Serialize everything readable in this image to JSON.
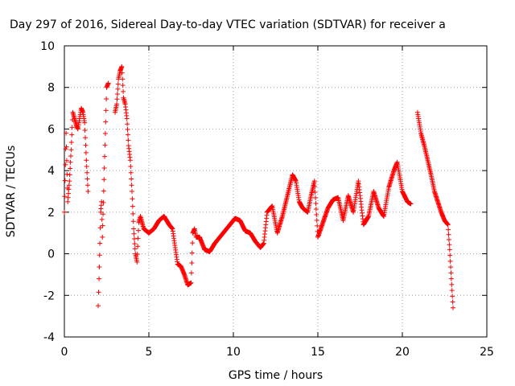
{
  "chart_data": {
    "type": "scatter",
    "title": "Day 297 of 2016, Sidereal Day-to-day VTEC variation (SDTVAR) for receiver a",
    "xlabel": "GPS time / hours",
    "ylabel": "SDTVAR / TECUs",
    "xlim": [
      0,
      25
    ],
    "ylim": [
      -4,
      10
    ],
    "xticks": [
      0,
      5,
      10,
      15,
      20,
      25
    ],
    "xtick_labels": [
      "0",
      "5",
      "10",
      "15",
      "20",
      "25"
    ],
    "yticks": [
      -4,
      -2,
      0,
      2,
      4,
      6,
      8,
      10
    ],
    "ytick_labels": [
      "-4",
      "-2",
      "0",
      "2",
      "4",
      "6",
      "8",
      "10"
    ],
    "grid": true,
    "marker": "+",
    "color": "#ff0000",
    "series": [
      {
        "name": "SDTVAR",
        "x": [
          0.0,
          0.1,
          0.2,
          0.3,
          0.4,
          0.5,
          0.6,
          0.7,
          0.8,
          0.9,
          1.0,
          1.1,
          1.2,
          1.3,
          1.4,
          2.0,
          2.05,
          2.1,
          2.15,
          2.2,
          2.25,
          2.5,
          2.6,
          3.0,
          3.1,
          3.2,
          3.3,
          3.4,
          3.5,
          3.6,
          3.7,
          3.8,
          3.9,
          4.0,
          4.1,
          4.2,
          4.3,
          4.4,
          4.5,
          4.7,
          5.0,
          5.3,
          5.6,
          5.9,
          6.2,
          6.4,
          6.7,
          6.9,
          7.1,
          7.3,
          7.5,
          7.6,
          7.7,
          7.8,
          8.0,
          8.3,
          8.6,
          8.9,
          9.2,
          9.5,
          9.8,
          10.1,
          10.4,
          10.7,
          11.0,
          11.3,
          11.6,
          11.8,
          12.0,
          12.3,
          12.6,
          12.9,
          13.2,
          13.5,
          13.7,
          13.9,
          14.1,
          14.4,
          14.6,
          14.8,
          15.0,
          15.3,
          15.6,
          15.9,
          16.2,
          16.5,
          16.8,
          17.1,
          17.4,
          17.7,
          18.0,
          18.3,
          18.6,
          18.9,
          19.2,
          19.5,
          19.7,
          20.0,
          20.3,
          20.5,
          20.9,
          21.1,
          21.3,
          21.5,
          21.7,
          21.9,
          22.1,
          22.3,
          22.5,
          22.7,
          22.8,
          22.9,
          23.0
        ],
        "y": [
          2.0,
          5.8,
          2.5,
          3.5,
          5.0,
          6.8,
          6.5,
          6.2,
          6.0,
          6.5,
          7.0,
          6.8,
          6.3,
          4.5,
          3.0,
          -2.5,
          -1.2,
          0.5,
          2.0,
          2.5,
          0.8,
          8.0,
          8.2,
          6.8,
          7.2,
          8.4,
          8.8,
          9.0,
          7.5,
          7.2,
          6.5,
          5.2,
          4.5,
          3.0,
          1.2,
          0.0,
          -0.4,
          1.5,
          1.8,
          1.2,
          1.0,
          1.2,
          1.6,
          1.8,
          1.4,
          1.2,
          -0.5,
          -0.6,
          -1.0,
          -1.5,
          -1.4,
          1.0,
          1.2,
          0.8,
          0.8,
          0.2,
          0.1,
          0.5,
          0.8,
          1.1,
          1.4,
          1.7,
          1.6,
          1.1,
          1.0,
          0.6,
          0.3,
          0.5,
          2.0,
          2.3,
          1.0,
          1.8,
          2.8,
          3.8,
          3.5,
          2.5,
          2.2,
          2.0,
          2.8,
          3.5,
          0.8,
          1.5,
          2.2,
          2.6,
          2.7,
          1.6,
          2.8,
          2.0,
          3.5,
          1.4,
          1.8,
          3.0,
          2.2,
          1.8,
          3.2,
          4.0,
          4.4,
          3.0,
          2.5,
          2.4,
          6.8,
          5.8,
          5.2,
          4.5,
          3.8,
          3.0,
          2.5,
          2.0,
          1.6,
          1.4,
          0.2,
          -1.2,
          -2.6
        ]
      }
    ]
  }
}
